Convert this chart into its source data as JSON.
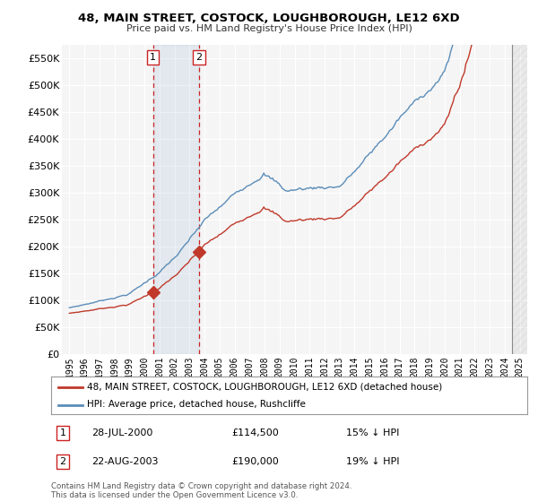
{
  "title": "48, MAIN STREET, COSTOCK, LOUGHBOROUGH, LE12 6XD",
  "subtitle": "Price paid vs. HM Land Registry's House Price Index (HPI)",
  "ylim": [
    0,
    575000
  ],
  "yticks": [
    0,
    50000,
    100000,
    150000,
    200000,
    250000,
    300000,
    350000,
    400000,
    450000,
    500000,
    550000
  ],
  "xlim_start": 1994.5,
  "xlim_end": 2025.5,
  "xticks": [
    1995,
    1996,
    1997,
    1998,
    1999,
    2000,
    2001,
    2002,
    2003,
    2004,
    2005,
    2006,
    2007,
    2008,
    2009,
    2010,
    2011,
    2012,
    2013,
    2014,
    2015,
    2016,
    2017,
    2018,
    2019,
    2020,
    2021,
    2022,
    2023,
    2024,
    2025
  ],
  "hpi_color": "#5b8db8",
  "price_color": "#c0392b",
  "vline_color": "#cc2222",
  "sale1_x": 2000.57,
  "sale1_y": 114500,
  "sale1_label": "1",
  "sale1_date": "28-JUL-2000",
  "sale1_price": "£114,500",
  "sale1_hpi": "15% ↓ HPI",
  "sale2_x": 2003.64,
  "sale2_y": 190000,
  "sale2_label": "2",
  "sale2_date": "22-AUG-2003",
  "sale2_price": "£190,000",
  "sale2_hpi": "19% ↓ HPI",
  "legend_price_label": "48, MAIN STREET, COSTOCK, LOUGHBOROUGH, LE12 6XD (detached house)",
  "legend_hpi_label": "HPI: Average price, detached house, Rushcliffe",
  "footer": "Contains HM Land Registry data © Crown copyright and database right 2024.\nThis data is licensed under the Open Government Licence v3.0.",
  "bg_color": "#ffffff",
  "plot_bg_color": "#f5f5f5",
  "grid_color": "#ffffff",
  "hatch_start": 2024.5
}
